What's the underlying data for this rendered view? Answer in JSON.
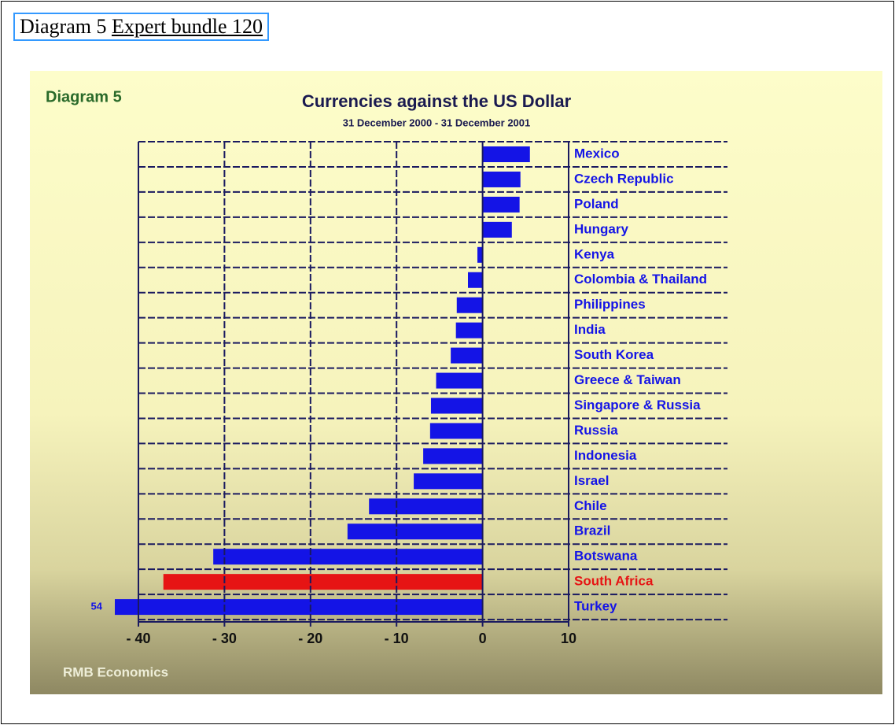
{
  "header": {
    "text": "Diagram 5",
    "link": "Expert bundle 120"
  },
  "chart_data": {
    "type": "bar",
    "orientation": "horizontal",
    "label": "Diagram 5",
    "title": "Currencies against the US Dollar",
    "subtitle": "31 December 2000 - 31 December 2001",
    "footer": "RMB Economics",
    "categories": [
      "Mexico",
      "Czech Republic",
      "Poland",
      "Hungary",
      "Kenya",
      "Colombia & Thailand",
      "Philippines",
      "India",
      "South Korea",
      "Greece & Taiwan",
      "Singapore & Russia",
      "Russia",
      "Indonesia",
      "Israel",
      "Chile",
      "Brazil",
      "Botswana",
      "South Africa",
      "Turkey"
    ],
    "series": [
      {
        "values": [
          5.5,
          4.4,
          4.3,
          3.4,
          -0.6,
          -1.7,
          -3.0,
          -3.1,
          -3.7,
          -5.4,
          -6.0,
          -6.1,
          -6.9,
          -8.0,
          -13.2,
          -15.7,
          -31.3,
          -37.1,
          -54
        ],
        "value_labels": [
          null,
          null,
          null,
          null,
          null,
          null,
          null,
          null,
          null,
          null,
          null,
          null,
          null,
          null,
          null,
          null,
          null,
          null,
          "54"
        ],
        "colors": [
          "#1414e6",
          "#1414e6",
          "#1414e6",
          "#1414e6",
          "#1414e6",
          "#1414e6",
          "#1414e6",
          "#1414e6",
          "#1414e6",
          "#1414e6",
          "#1414e6",
          "#1414e6",
          "#1414e6",
          "#1414e6",
          "#1414e6",
          "#1414e6",
          "#1414e6",
          "#e61414",
          "#1414e6"
        ]
      }
    ],
    "xlim": [
      -40,
      10
    ],
    "xticks": [
      {
        "value": -40,
        "label": "- 40"
      },
      {
        "value": -30,
        "label": "- 30"
      },
      {
        "value": -20,
        "label": "- 20"
      },
      {
        "value": -10,
        "label": "- 10"
      },
      0,
      10
    ],
    "grid": true
  }
}
